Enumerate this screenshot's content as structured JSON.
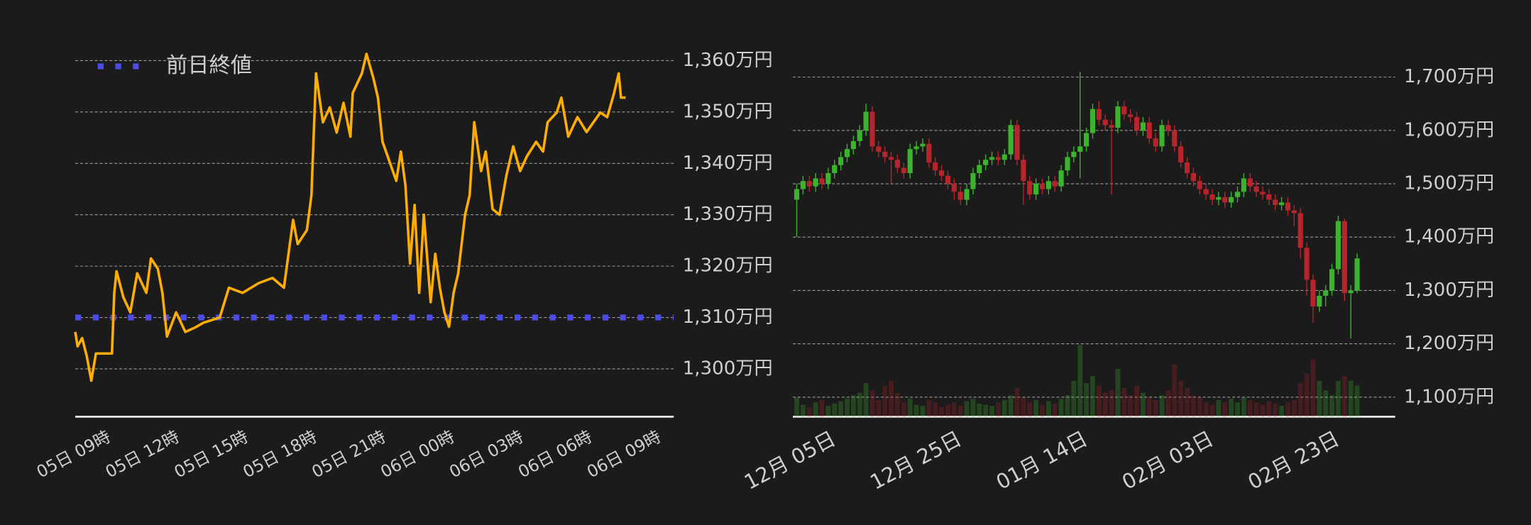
{
  "chart_data": [
    {
      "type": "line",
      "reference_line": {
        "name": "前日終値",
        "value": 1310,
        "color": "#4b4be8"
      },
      "x": [
        -1.5,
        -1.4,
        -1.2,
        -1.0,
        -0.8,
        -0.6,
        0.1,
        0.2,
        0.3,
        0.6,
        0.9,
        1.2,
        1.6,
        1.8,
        2.1,
        2.3,
        2.5,
        2.9,
        3.3,
        3.7,
        4.1,
        4.8,
        5.2,
        5.8,
        6.5,
        7.1,
        7.6,
        7.8,
        8.0,
        8.2,
        8.6,
        8.8,
        9.0,
        9.3,
        9.6,
        9.9,
        10.2,
        10.5,
        10.6,
        11.0,
        11.2,
        11.5,
        11.7,
        11.9,
        12.2,
        12.5,
        12.7,
        12.9,
        13.1,
        13.3,
        13.5,
        13.7,
        14.0,
        14.2,
        14.4,
        14.6,
        14.8,
        15.0,
        15.2,
        15.5,
        15.7,
        15.9,
        16.2,
        16.4,
        16.7,
        17.0,
        17.3,
        17.6,
        17.9,
        18.2,
        18.6,
        18.9,
        19.1,
        19.5,
        19.7,
        20.0,
        20.4,
        20.8,
        21.1,
        21.4,
        21.7,
        22.0,
        22.2,
        22.3,
        22.5
      ],
      "series": [
        {
          "color": "#ffae00",
          "values": [
            1307.2,
            1304.4,
            1306,
            1302.5,
            1297.7,
            1303,
            1303,
            1314.8,
            1319,
            1313.9,
            1311,
            1318.6,
            1314.8,
            1321.5,
            1319.5,
            1314.8,
            1306.3,
            1311,
            1307.2,
            1308,
            1309,
            1310,
            1315.8,
            1314.8,
            1316.7,
            1317.7,
            1315.8,
            1322.4,
            1329,
            1324.3,
            1327,
            1333.8,
            1357.5,
            1348,
            1350.9,
            1346,
            1351.8,
            1345.2,
            1353.7,
            1357.5,
            1361.3,
            1356.6,
            1352.8,
            1344.2,
            1340.4,
            1336.6,
            1342.3,
            1335.7,
            1320.5,
            1331.9,
            1314.8,
            1330,
            1313,
            1322.4,
            1315.8,
            1311,
            1308.2,
            1314.8,
            1318.6,
            1330,
            1333.8,
            1348,
            1338.5,
            1342.3,
            1331.1,
            1330,
            1337.6,
            1343.3,
            1338.5,
            1341.4,
            1344.2,
            1342.3,
            1348,
            1349.9,
            1352.8,
            1345.2,
            1349,
            1346.1,
            1348,
            1349.9,
            1349,
            1353.7,
            1357.5,
            1352.8,
            1352.8
          ]
        }
      ],
      "xlim": [
        -1.5,
        24.6
      ],
      "xticks": [
        {
          "value": 0,
          "label": "05日 09時"
        },
        {
          "value": 3,
          "label": "05日 12時"
        },
        {
          "value": 6,
          "label": "05日 15時"
        },
        {
          "value": 9,
          "label": "05日 18時"
        },
        {
          "value": 12,
          "label": "05日 21時"
        },
        {
          "value": 15,
          "label": "06日 00時"
        },
        {
          "value": 18,
          "label": "06日 03時"
        },
        {
          "value": 21,
          "label": "06日 06時"
        },
        {
          "value": 24,
          "label": "06日 09時"
        }
      ],
      "ylim": [
        1290.7,
        1362.3
      ],
      "yticks": [
        {
          "value": 1300,
          "label": "1,300万円"
        },
        {
          "value": 1310,
          "label": "1,310万円"
        },
        {
          "value": 1320,
          "label": "1,320万円"
        },
        {
          "value": 1330,
          "label": "1,330万円"
        },
        {
          "value": 1340,
          "label": "1,340万円"
        },
        {
          "value": 1350,
          "label": "1,350万円"
        },
        {
          "value": 1360,
          "label": "1,360万円"
        }
      ],
      "grid": true
    },
    {
      "type": "candlestick",
      "categories": [
        null,
        null,
        null,
        null,
        null,
        null,
        "12月 05日",
        null,
        null,
        null,
        null,
        null,
        null,
        null,
        null,
        null,
        null,
        null,
        null,
        null,
        null,
        null,
        null,
        null,
        null,
        null,
        "12月 25日",
        null,
        null,
        null,
        null,
        null,
        null,
        null,
        null,
        null,
        null,
        null,
        null,
        null,
        null,
        null,
        null,
        null,
        null,
        null,
        "01月 14日",
        null,
        null,
        null,
        null,
        null,
        null,
        null,
        null,
        null,
        null,
        null,
        null,
        null,
        null,
        null,
        null,
        null,
        null,
        null,
        "02月 03日",
        null,
        null,
        null,
        null,
        null,
        null,
        null,
        null,
        null,
        null,
        null,
        null,
        null,
        null,
        null,
        null,
        null,
        null,
        null,
        "02月 23日",
        null,
        null,
        null
      ],
      "open": [
        1470,
        1490,
        1505,
        1495,
        1510,
        1500,
        1520,
        1535,
        1550,
        1565,
        1580,
        1600,
        1635,
        1570,
        1560,
        1550,
        1545,
        1530,
        1520,
        1565,
        1570,
        1575,
        1540,
        1525,
        1515,
        1500,
        1485,
        1470,
        1490,
        1520,
        1535,
        1545,
        1550,
        1545,
        1555,
        1610,
        1545,
        1505,
        1480,
        1500,
        1490,
        1505,
        1495,
        1525,
        1550,
        1560,
        1570,
        1595,
        1640,
        1620,
        1610,
        1605,
        1645,
        1630,
        1625,
        1600,
        1615,
        1585,
        1570,
        1610,
        1600,
        1570,
        1540,
        1520,
        1505,
        1490,
        1480,
        1470,
        1475,
        1465,
        1475,
        1485,
        1510,
        1495,
        1485,
        1480,
        1470,
        1460,
        1465,
        1450,
        1445,
        1380,
        1320,
        1270,
        1290,
        1300,
        1340,
        1430,
        1295,
        1300
      ],
      "high": [
        1500,
        1515,
        1515,
        1520,
        1520,
        1530,
        1545,
        1560,
        1575,
        1590,
        1610,
        1650,
        1645,
        1580,
        1570,
        1560,
        1555,
        1540,
        1575,
        1580,
        1585,
        1585,
        1550,
        1535,
        1525,
        1510,
        1495,
        1500,
        1530,
        1545,
        1555,
        1560,
        1560,
        1565,
        1620,
        1620,
        1555,
        1515,
        1510,
        1510,
        1515,
        1515,
        1535,
        1560,
        1570,
        1710,
        1605,
        1650,
        1655,
        1630,
        1620,
        1655,
        1655,
        1640,
        1635,
        1625,
        1625,
        1595,
        1620,
        1620,
        1610,
        1580,
        1550,
        1530,
        1515,
        1500,
        1490,
        1485,
        1485,
        1485,
        1495,
        1520,
        1520,
        1505,
        1495,
        1490,
        1480,
        1475,
        1475,
        1460,
        1455,
        1390,
        1330,
        1300,
        1310,
        1350,
        1440,
        1435,
        1310,
        1370
      ],
      "low": [
        1400,
        1480,
        1485,
        1485,
        1490,
        1490,
        1510,
        1525,
        1540,
        1555,
        1570,
        1590,
        1560,
        1550,
        1540,
        1500,
        1520,
        1510,
        1510,
        1555,
        1560,
        1530,
        1515,
        1505,
        1490,
        1470,
        1460,
        1460,
        1480,
        1510,
        1525,
        1535,
        1535,
        1535,
        1545,
        1535,
        1460,
        1470,
        1470,
        1480,
        1480,
        1485,
        1485,
        1515,
        1540,
        1510,
        1560,
        1585,
        1610,
        1600,
        1480,
        1595,
        1620,
        1615,
        1590,
        1590,
        1575,
        1560,
        1560,
        1590,
        1560,
        1530,
        1510,
        1495,
        1480,
        1470,
        1460,
        1460,
        1455,
        1455,
        1465,
        1475,
        1485,
        1475,
        1470,
        1460,
        1450,
        1450,
        1440,
        1420,
        1360,
        1290,
        1240,
        1260,
        1270,
        1290,
        1330,
        1280,
        1210,
        1295
      ],
      "close": [
        1490,
        1505,
        1495,
        1510,
        1500,
        1520,
        1535,
        1550,
        1565,
        1580,
        1600,
        1635,
        1570,
        1560,
        1550,
        1545,
        1530,
        1520,
        1565,
        1570,
        1575,
        1540,
        1525,
        1515,
        1500,
        1485,
        1470,
        1490,
        1520,
        1535,
        1545,
        1550,
        1545,
        1555,
        1610,
        1545,
        1505,
        1480,
        1500,
        1490,
        1505,
        1495,
        1525,
        1550,
        1560,
        1570,
        1595,
        1640,
        1620,
        1610,
        1605,
        1645,
        1630,
        1625,
        1600,
        1615,
        1585,
        1570,
        1610,
        1600,
        1570,
        1540,
        1520,
        1505,
        1490,
        1480,
        1470,
        1475,
        1465,
        1475,
        1485,
        1510,
        1495,
        1485,
        1480,
        1470,
        1460,
        1465,
        1450,
        1445,
        1380,
        1320,
        1270,
        1290,
        1300,
        1340,
        1430,
        1295,
        1300,
        1360
      ],
      "volume": [
        16,
        10,
        8,
        12,
        14,
        9,
        11,
        13,
        15,
        18,
        20,
        28,
        22,
        14,
        26,
        30,
        20,
        12,
        15,
        10,
        9,
        14,
        12,
        8,
        10,
        12,
        9,
        13,
        15,
        11,
        10,
        9,
        12,
        14,
        18,
        24,
        16,
        12,
        14,
        10,
        13,
        11,
        15,
        18,
        30,
        60,
        28,
        34,
        26,
        20,
        22,
        40,
        24,
        18,
        26,
        20,
        16,
        14,
        18,
        22,
        44,
        30,
        24,
        18,
        16,
        12,
        10,
        14,
        12,
        15,
        12,
        16,
        14,
        12,
        10,
        13,
        11,
        9,
        12,
        14,
        28,
        36,
        48,
        30,
        22,
        18,
        30,
        34,
        30,
        26
      ],
      "up_color": "#3cb32c",
      "down_color": "#b8242b",
      "ylim": [
        1063.4,
        1734.7
      ],
      "yticks": [
        {
          "value": 1100,
          "label": "1,100万円"
        },
        {
          "value": 1200,
          "label": "1,200万円"
        },
        {
          "value": 1300,
          "label": "1,300万円"
        },
        {
          "value": 1400,
          "label": "1,400万円"
        },
        {
          "value": 1500,
          "label": "1,500万円"
        },
        {
          "value": 1600,
          "label": "1,600万円"
        },
        {
          "value": 1700,
          "label": "1,700万円"
        }
      ],
      "y2lim": [
        0,
        300
      ],
      "grid": true
    }
  ]
}
